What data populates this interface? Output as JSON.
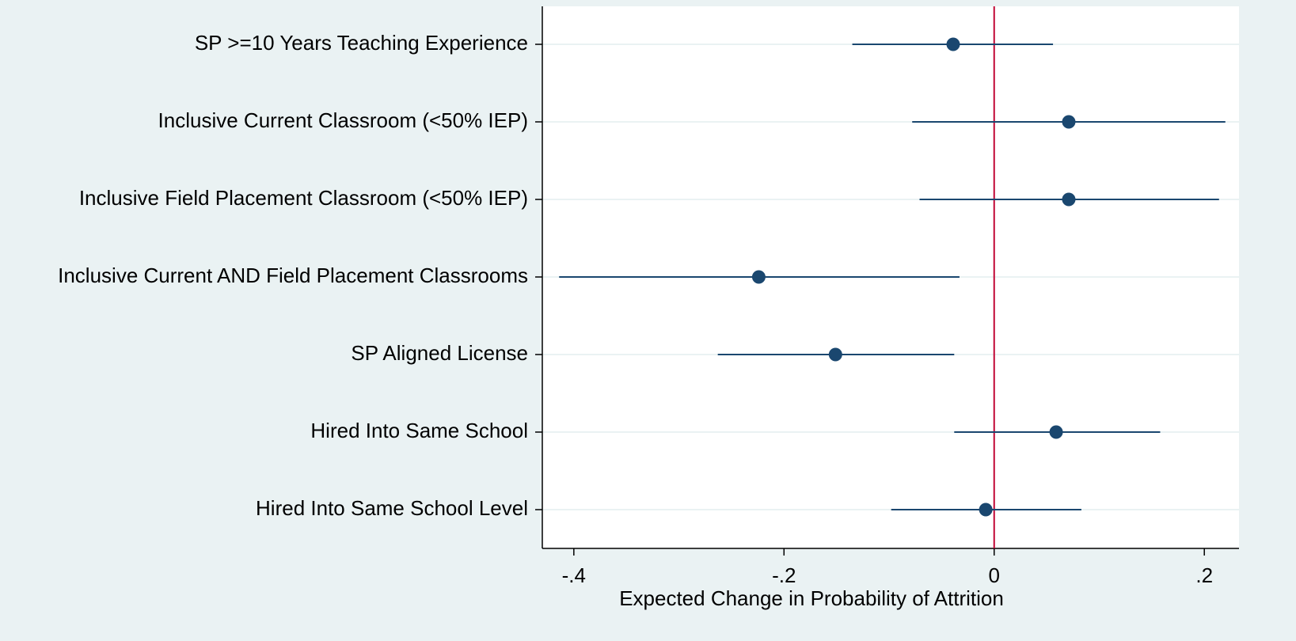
{
  "chart_data": {
    "type": "coefplot",
    "xlabel": "Expected Change in Probability of Attrition",
    "categories": [
      "SP >=10 Years Teaching Experience",
      "Inclusive Current Classroom (<50% IEP)",
      "Inclusive Field Placement Classroom (<50% IEP)",
      "Inclusive Current AND Field Placement Classrooms",
      "SP Aligned License",
      "Hired Into Same School",
      "Hired Into Same School Level"
    ],
    "values": [
      -0.039,
      0.071,
      0.071,
      -0.224,
      -0.151,
      0.059,
      -0.008
    ],
    "ci_low": [
      -0.135,
      -0.078,
      -0.071,
      -0.414,
      -0.263,
      -0.038,
      -0.098
    ],
    "ci_high": [
      0.056,
      0.22,
      0.214,
      -0.033,
      -0.038,
      0.158,
      0.083
    ],
    "color": "#1a476f",
    "reference_line": 0,
    "reference_color": "#c10534",
    "xlim": [
      -0.43,
      0.233
    ],
    "xticks": [
      {
        "value": -0.4,
        "label": "-.4"
      },
      {
        "value": -0.2,
        "label": "-.2"
      },
      0,
      {
        "value": 0.2,
        "label": ".2"
      }
    ],
    "grid": true
  }
}
